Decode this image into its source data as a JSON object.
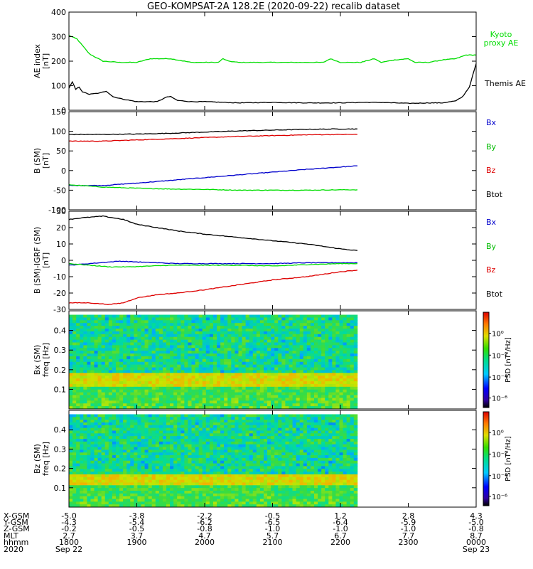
{
  "title": "GEO-KOMPSAT-2A 128.2E (2020-09-22) recalib dataset",
  "colors": {
    "black": "#000000",
    "green": "#00dd00",
    "blue": "#0000cc",
    "red": "#dd0000",
    "spec_bg": "#33cc66"
  },
  "chart_data": [
    {
      "id": "ae",
      "type": "line",
      "ylabel_lines": [
        "AE index",
        "[nT]"
      ],
      "ylim": [
        0,
        400
      ],
      "yticks": [
        0,
        100,
        200,
        300,
        400
      ],
      "xlim": [
        0,
        6
      ],
      "series": [
        {
          "name": "Kyoto proxy AE",
          "color": "#00dd00",
          "x": [
            0,
            0.12,
            0.3,
            0.5,
            0.75,
            1.0,
            1.2,
            1.5,
            1.8,
            2.0,
            2.2,
            2.27,
            2.35,
            2.5,
            2.7,
            2.9,
            3.1,
            3.3,
            3.5,
            3.75,
            3.85,
            4.0,
            4.3,
            4.5,
            4.6,
            4.8,
            5.0,
            5.1,
            5.3,
            5.5,
            5.7,
            5.85,
            6.0
          ],
          "y": [
            305,
            290,
            230,
            200,
            195,
            195,
            210,
            210,
            195,
            195,
            195,
            210,
            200,
            195,
            195,
            195,
            195,
            195,
            195,
            195,
            210,
            195,
            195,
            210,
            195,
            205,
            210,
            195,
            195,
            205,
            210,
            225,
            225
          ]
        },
        {
          "name": "Themis AE",
          "color": "#000000",
          "x": [
            0,
            0.05,
            0.1,
            0.15,
            0.2,
            0.3,
            0.45,
            0.55,
            0.65,
            0.8,
            1.0,
            1.3,
            1.45,
            1.5,
            1.6,
            1.8,
            2.0,
            2.5,
            3.0,
            3.5,
            4.0,
            4.3,
            4.6,
            5.0,
            5.3,
            5.5,
            5.7,
            5.8,
            5.9,
            6.0
          ],
          "y": [
            90,
            115,
            85,
            95,
            75,
            65,
            70,
            78,
            55,
            45,
            35,
            35,
            55,
            55,
            40,
            35,
            35,
            30,
            32,
            30,
            30,
            32,
            32,
            28,
            30,
            30,
            38,
            55,
            95,
            190
          ]
        }
      ]
    },
    {
      "id": "bsm",
      "type": "line",
      "ylabel_lines": [
        "B (SM)",
        "[nT]"
      ],
      "ylim": [
        -100,
        150
      ],
      "yticks": [
        -100,
        -50,
        0,
        50,
        100,
        150
      ],
      "xlim": [
        0,
        6
      ],
      "series": [
        {
          "name": "Bx",
          "color": "#0000cc",
          "x": [
            0,
            0.5,
            1.0,
            1.5,
            2.0,
            2.5,
            3.0,
            3.5,
            4.0,
            4.25
          ],
          "y": [
            -38,
            -38,
            -32,
            -25,
            -18,
            -11,
            -4,
            3,
            9,
            12
          ]
        },
        {
          "name": "By",
          "color": "#00dd00",
          "x": [
            0,
            0.5,
            1.0,
            1.5,
            2.0,
            2.5,
            3.0,
            3.5,
            4.0,
            4.25
          ],
          "y": [
            -36,
            -42,
            -45,
            -47,
            -48,
            -50,
            -50,
            -50,
            -49,
            -49
          ]
        },
        {
          "name": "Bz",
          "color": "#dd0000",
          "x": [
            0,
            0.5,
            1.0,
            1.5,
            2.0,
            2.5,
            3.0,
            3.5,
            4.0,
            4.25
          ],
          "y": [
            75,
            75,
            78,
            81,
            84,
            87,
            89,
            91,
            92,
            92
          ]
        },
        {
          "name": "Btot",
          "color": "#000000",
          "x": [
            0,
            0.5,
            1.0,
            1.5,
            2.0,
            2.5,
            3.0,
            3.5,
            4.0,
            4.25
          ],
          "y": [
            92,
            92,
            93,
            95,
            98,
            101,
            103,
            105,
            106,
            106
          ]
        }
      ]
    },
    {
      "id": "bigrf",
      "type": "line",
      "ylabel_lines": [
        "B (SM)-IGRF (SM)",
        "[nT]"
      ],
      "ylim": [
        -30,
        30
      ],
      "yticks": [
        -30,
        -20,
        -10,
        0,
        10,
        20,
        30
      ],
      "xlim": [
        0,
        6
      ],
      "series": [
        {
          "name": "Bx",
          "color": "#0000cc",
          "x": [
            0,
            0.3,
            0.6,
            0.75,
            1.0,
            1.3,
            1.6,
            2.0,
            2.5,
            3.0,
            3.5,
            4.0,
            4.25
          ],
          "y": [
            -3,
            -2,
            -1,
            -0.5,
            -1,
            -1.5,
            -2,
            -2,
            -2,
            -2,
            -1.5,
            -1.5,
            -1.5
          ]
        },
        {
          "name": "By",
          "color": "#00dd00",
          "x": [
            0,
            0.3,
            0.6,
            0.9,
            1.2,
            1.5,
            2.0,
            2.5,
            3.0,
            3.3,
            3.6,
            4.0,
            4.25
          ],
          "y": [
            -2,
            -3,
            -4,
            -4,
            -3.5,
            -3,
            -3,
            -3,
            -3.5,
            -3,
            -2.5,
            -2,
            -2
          ]
        },
        {
          "name": "Bz",
          "color": "#dd0000",
          "x": [
            0,
            0.3,
            0.6,
            0.8,
            1.0,
            1.3,
            1.6,
            2.0,
            2.5,
            3.0,
            3.5,
            4.0,
            4.25
          ],
          "y": [
            -26,
            -26,
            -27,
            -26,
            -23,
            -21,
            -20,
            -18,
            -15,
            -12,
            -10,
            -7,
            -6
          ]
        },
        {
          "name": "Btot",
          "color": "#000000",
          "x": [
            0,
            0.2,
            0.5,
            0.8,
            1.0,
            1.3,
            1.6,
            2.0,
            2.5,
            3.0,
            3.5,
            4.0,
            4.25
          ],
          "y": [
            25,
            26,
            27,
            25,
            22,
            20,
            18,
            16,
            14,
            12,
            10,
            7,
            6
          ]
        }
      ]
    },
    {
      "id": "bx_spec",
      "type": "heatmap",
      "ylabel_lines": [
        "Bx (SM)",
        "freq [Hz]"
      ],
      "ylim": [
        0,
        0.5
      ],
      "yticks": [
        0.1,
        0.2,
        0.3,
        0.4
      ],
      "xlim": [
        0,
        6
      ],
      "data_xlim": [
        0,
        4.25
      ],
      "data_ylim": [
        0,
        0.48
      ],
      "band_hz": [
        0.12,
        0.18
      ],
      "colorbar": {
        "label": "PSD [nT²/Hz]",
        "ticks": [
          "10⁰",
          "10⁻²",
          "10⁻⁴",
          "10⁻⁶"
        ]
      }
    },
    {
      "id": "bz_spec",
      "type": "heatmap",
      "ylabel_lines": [
        "Bz (SM)",
        "freq [Hz]"
      ],
      "ylim": [
        0,
        0.5
      ],
      "yticks": [
        0.1,
        0.2,
        0.3,
        0.4
      ],
      "xlim": [
        0,
        6
      ],
      "data_xlim": [
        0,
        4.25
      ],
      "data_ylim": [
        0,
        0.48
      ],
      "band_hz": [
        0.11,
        0.17
      ],
      "colorbar": {
        "label": "PSD [nT²/Hz]",
        "ticks": [
          "10⁰",
          "10⁻²",
          "10⁻⁴",
          "10⁻⁶"
        ]
      }
    }
  ],
  "legends": {
    "ae": [
      "Kyoto proxy AE",
      "Themis AE"
    ],
    "b": [
      "Bx",
      "By",
      "Bz",
      "Btot"
    ]
  },
  "xaxis": {
    "row_labels": [
      "X-GSM",
      "Y-GSM",
      "Z-GSM",
      "MLT",
      "hhmm",
      "2020"
    ],
    "columns": [
      {
        "x": 0,
        "vals": [
          "-5.0",
          "-4.3",
          "-0.2",
          "2.7",
          "1800",
          "Sep 22"
        ]
      },
      {
        "x": 1,
        "vals": [
          "-3.8",
          "-5.4",
          "-0.5",
          "3.7",
          "1900",
          ""
        ]
      },
      {
        "x": 2,
        "vals": [
          "-2.2",
          "-6.2",
          "-0.8",
          "4.7",
          "2000",
          ""
        ]
      },
      {
        "x": 3,
        "vals": [
          "-0.5",
          "-6.5",
          "-1.0",
          "5.7",
          "2100",
          ""
        ]
      },
      {
        "x": 4,
        "vals": [
          "1.2",
          "-6.4",
          "-1.0",
          "6.7",
          "2200",
          ""
        ]
      },
      {
        "x": 5,
        "vals": [
          "2.8",
          "-5.9",
          "-1.0",
          "7.7",
          "2300",
          ""
        ]
      },
      {
        "x": 6,
        "vals": [
          "4.3",
          "-5.0",
          "-0.8",
          "8.7",
          "0000",
          "Sep 23"
        ]
      }
    ]
  }
}
